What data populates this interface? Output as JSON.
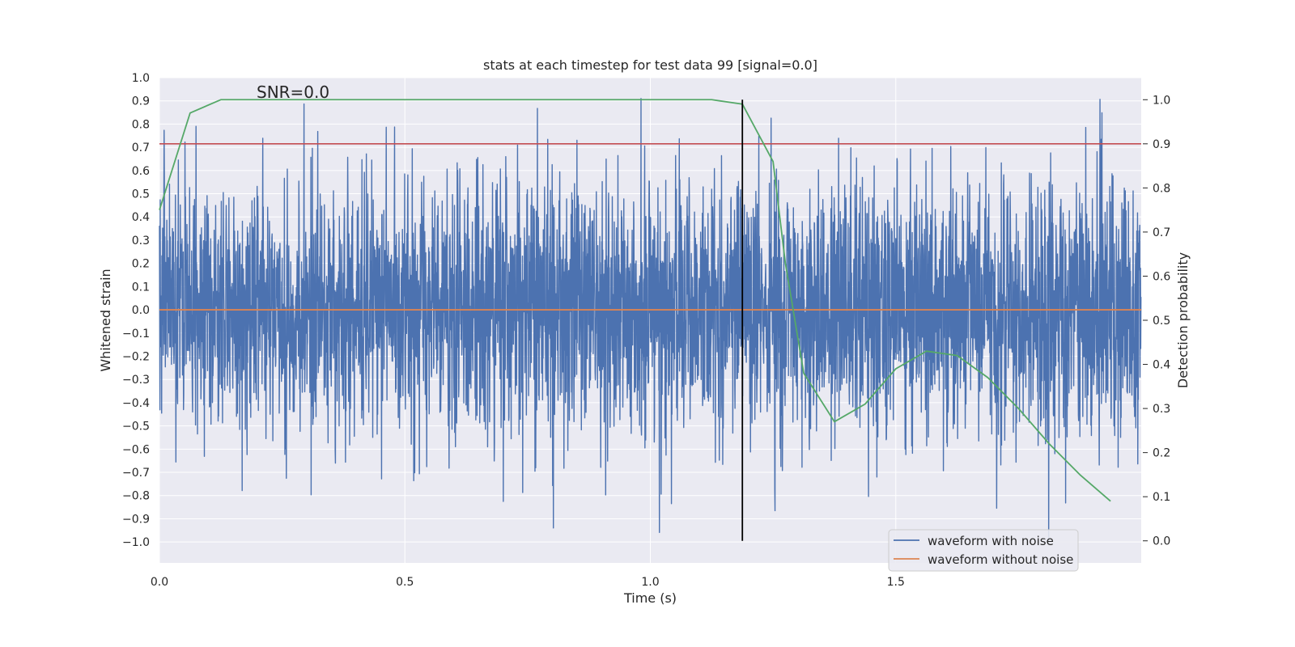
{
  "chart_data": {
    "type": "line",
    "title": "stats at each timestep for test data 99 [signal=0.0]",
    "xlabel": "Time (s)",
    "ylabel": "Whitened strain",
    "ylabel_right": "Detection probability",
    "xlim": [
      0.0,
      2.0
    ],
    "ylim": [
      -1.09,
      1.0
    ],
    "ylim_right": [
      -0.05,
      1.05
    ],
    "x_ticks": [
      0.0,
      0.5,
      1.0,
      1.5
    ],
    "x_tick_labels": [
      "0.0",
      "0.5",
      "1.0",
      "1.5"
    ],
    "y_ticks": [
      1.0,
      0.9,
      0.8,
      0.7,
      0.6,
      0.5,
      0.4,
      0.3,
      0.2,
      0.1,
      0.0,
      -0.1,
      -0.2,
      -0.3,
      -0.4,
      -0.5,
      -0.6,
      -0.7,
      -0.8,
      -0.9,
      -1.0
    ],
    "y_tick_labels": [
      "1.0",
      "0.9",
      "0.8",
      "0.7",
      "0.6",
      "0.5",
      "0.4",
      "0.3",
      "0.2",
      "0.1",
      "0.0",
      "−0.1",
      "−0.2",
      "−0.3",
      "−0.4",
      "−0.5",
      "−0.6",
      "−0.7",
      "−0.8",
      "−0.9",
      "−1.0"
    ],
    "y_right_ticks": [
      1.0,
      0.9,
      0.8,
      0.7,
      0.6,
      0.5,
      0.4,
      0.3,
      0.2,
      0.1,
      0.0
    ],
    "y_right_tick_labels": [
      "1.0",
      "0.9",
      "0.8",
      "0.7",
      "0.6",
      "0.5",
      "0.4",
      "0.3",
      "0.2",
      "0.1",
      "0.0"
    ],
    "grid": true,
    "annotation": "SNR=0.0",
    "noise_series": {
      "name": "waveform with noise",
      "color": "#4c72b0",
      "samples": 4000,
      "dt": 0.0005,
      "sigma": 0.27,
      "seed": 99,
      "clip": [
        -1.0,
        0.91
      ]
    },
    "clean_series": {
      "name": "waveform without noise",
      "color": "#dd8452",
      "x": [
        0.0,
        2.0
      ],
      "y": [
        0.0,
        0.0
      ]
    },
    "probability_series": {
      "name": "detection probability",
      "color": "#55a868",
      "x": [
        0.0,
        0.0625,
        0.125,
        0.1875,
        0.25,
        0.3125,
        0.375,
        0.4375,
        0.5,
        0.5625,
        0.625,
        0.6875,
        0.75,
        0.8125,
        0.875,
        0.9375,
        1.0,
        1.0625,
        1.125,
        1.1875,
        1.25,
        1.275,
        1.3125,
        1.375,
        1.4375,
        1.5,
        1.5625,
        1.625,
        1.6875,
        1.75,
        1.8125,
        1.875,
        1.9375
      ],
      "y": [
        0.75,
        0.97,
        1.0,
        1.0,
        1.0,
        1.0,
        1.0,
        1.0,
        1.0,
        1.0,
        1.0,
        1.0,
        1.0,
        1.0,
        1.0,
        1.0,
        1.0,
        1.0,
        1.0,
        0.99,
        0.86,
        0.63,
        0.38,
        0.27,
        0.31,
        0.39,
        0.43,
        0.42,
        0.37,
        0.3,
        0.22,
        0.15,
        0.09
      ]
    },
    "threshold": {
      "name": "threshold",
      "value_right": 0.9,
      "color": "#c44e52"
    },
    "marker_line": {
      "name": "marker",
      "x": 1.1875,
      "y_from_right": 0.0,
      "y_to_right": 1.0,
      "color": "#000000"
    },
    "legend": {
      "placement": "lower-right",
      "entries": [
        {
          "label": "waveform with noise",
          "color": "#4c72b0"
        },
        {
          "label": "waveform without noise",
          "color": "#dd8452"
        }
      ]
    }
  }
}
